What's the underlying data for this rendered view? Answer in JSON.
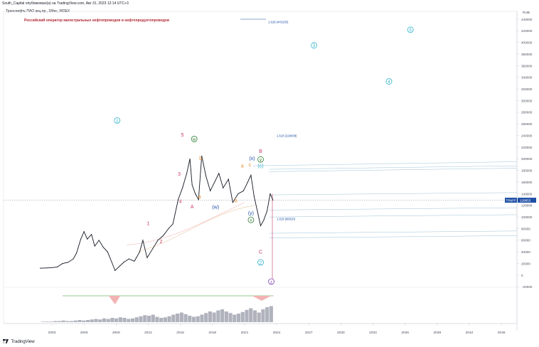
{
  "header": "South_Capital опубликовал(а) на TradingView.com, Авг 31, 2023 12:14 UTC+3",
  "symbol_line": "Транснефть ПАО акц.пр., 1Мес, MOEX",
  "description": "Российский оператор магистральных нефтепроводов и нефтепродуктопроводов",
  "footer_brand": "TradingView",
  "chart_data": {
    "type": "line",
    "currency": "RUB",
    "ticker": "TRNFP",
    "last_price_label": "128853",
    "y_ticks": [
      440000,
      420000,
      400000,
      380000,
      360000,
      340000,
      320000,
      300000,
      280000,
      260000,
      240000,
      220000,
      200000,
      180000,
      160000,
      140000,
      120000,
      100000,
      80000,
      60000,
      40000,
      20000,
      0,
      -20000
    ],
    "y_tick_labels": [
      "440000",
      "420000",
      "400000",
      "380000",
      "360000",
      "340000",
      "320000",
      "300000",
      "280000",
      "260000",
      "240000",
      "220000",
      "200000",
      "180000",
      "160000",
      "140000",
      "120000",
      "100000",
      "80000",
      "60000",
      "40000",
      "20000",
      "0",
      "−20000"
    ],
    "ylim": [
      -20000,
      440000
    ],
    "x_ticks": [
      2003,
      2006,
      2009,
      2012,
      2015,
      2018,
      2021,
      2024,
      2027,
      2030,
      2033,
      2036,
      2039,
      2042,
      2045
    ],
    "x_tick_labels": [
      "2003",
      "2006",
      "2009",
      "2012",
      "2015",
      "2018",
      "2021",
      "2024",
      "2027",
      "2030",
      "2033",
      "2036",
      "2039",
      "2042",
      "2045"
    ],
    "xlim": [
      2002.2,
      2046.5
    ],
    "price_series": [
      {
        "x": 2001.9,
        "y": 12000
      },
      {
        "x": 2002.5,
        "y": 12500
      },
      {
        "x": 2003.0,
        "y": 13000
      },
      {
        "x": 2003.5,
        "y": 14000
      },
      {
        "x": 2004.0,
        "y": 20000
      },
      {
        "x": 2004.5,
        "y": 22000
      },
      {
        "x": 2005.0,
        "y": 28000
      },
      {
        "x": 2005.3,
        "y": 38000
      },
      {
        "x": 2005.7,
        "y": 62000
      },
      {
        "x": 2006.0,
        "y": 75000
      },
      {
        "x": 2006.3,
        "y": 62000
      },
      {
        "x": 2006.7,
        "y": 70000
      },
      {
        "x": 2007.0,
        "y": 50000
      },
      {
        "x": 2007.4,
        "y": 60000
      },
      {
        "x": 2007.8,
        "y": 48000
      },
      {
        "x": 2008.2,
        "y": 40000
      },
      {
        "x": 2008.6,
        "y": 22000
      },
      {
        "x": 2008.9,
        "y": 8000
      },
      {
        "x": 2009.3,
        "y": 15000
      },
      {
        "x": 2009.7,
        "y": 22000
      },
      {
        "x": 2010.2,
        "y": 28000
      },
      {
        "x": 2010.7,
        "y": 24000
      },
      {
        "x": 2011.2,
        "y": 40000
      },
      {
        "x": 2011.5,
        "y": 60000
      },
      {
        "x": 2011.9,
        "y": 30000
      },
      {
        "x": 2012.4,
        "y": 45000
      },
      {
        "x": 2012.9,
        "y": 60000
      },
      {
        "x": 2013.4,
        "y": 68000
      },
      {
        "x": 2013.9,
        "y": 80000
      },
      {
        "x": 2014.3,
        "y": 88000
      },
      {
        "x": 2014.8,
        "y": 130000
      },
      {
        "x": 2015.2,
        "y": 150000
      },
      {
        "x": 2015.6,
        "y": 175000
      },
      {
        "x": 2015.9,
        "y": 200000
      },
      {
        "x": 2016.1,
        "y": 155000
      },
      {
        "x": 2016.4,
        "y": 140000
      },
      {
        "x": 2016.7,
        "y": 130000
      },
      {
        "x": 2017.0,
        "y": 205000
      },
      {
        "x": 2017.4,
        "y": 170000
      },
      {
        "x": 2017.8,
        "y": 145000
      },
      {
        "x": 2018.2,
        "y": 160000
      },
      {
        "x": 2018.6,
        "y": 175000
      },
      {
        "x": 2019.0,
        "y": 150000
      },
      {
        "x": 2019.5,
        "y": 165000
      },
      {
        "x": 2019.9,
        "y": 125000
      },
      {
        "x": 2020.4,
        "y": 140000
      },
      {
        "x": 2020.9,
        "y": 145000
      },
      {
        "x": 2021.3,
        "y": 160000
      },
      {
        "x": 2021.6,
        "y": 172000
      },
      {
        "x": 2021.9,
        "y": 135000
      },
      {
        "x": 2022.2,
        "y": 110000
      },
      {
        "x": 2022.5,
        "y": 85000
      },
      {
        "x": 2022.8,
        "y": 95000
      },
      {
        "x": 2023.1,
        "y": 110000
      },
      {
        "x": 2023.4,
        "y": 140000
      },
      {
        "x": 2023.66,
        "y": 128853
      }
    ],
    "wave_labels": [
      {
        "text": "1",
        "x": 2009.1,
        "y": 266000,
        "color": "#2bb0c8",
        "circled": true
      },
      {
        "text": "5",
        "x": 2015.2,
        "y": 241000,
        "color": "#c43b5f",
        "circled": false
      },
      {
        "text": "w",
        "x": 2016.3,
        "y": 234000,
        "color": "#2e7d32",
        "circled": true
      },
      {
        "text": "3",
        "x": 2014.9,
        "y": 174000,
        "color": "#c43b5f",
        "circled": false
      },
      {
        "text": "4",
        "x": 2015.0,
        "y": 127000,
        "color": "#c43b5f",
        "circled": false
      },
      {
        "text": "A",
        "x": 2016.1,
        "y": 118000,
        "color": "#c43b5f",
        "circled": false
      },
      {
        "text": "b",
        "x": 2016.9,
        "y": 201000,
        "color": "#e08a2a",
        "circled": false
      },
      {
        "text": "a",
        "x": 2016.8,
        "y": 135000,
        "color": "#e08a2a",
        "circled": false
      },
      {
        "text": "(w)",
        "x": 2018.3,
        "y": 117000,
        "color": "#1f4fa5",
        "circled": false
      },
      {
        "text": "(x)",
        "x": 2021.7,
        "y": 201000,
        "color": "#1f4fa5",
        "circled": false
      },
      {
        "text": "a",
        "x": 2020.8,
        "y": 188000,
        "color": "#e08a2a",
        "circled": false
      },
      {
        "text": "c",
        "x": 2021.5,
        "y": 190000,
        "color": "#e08a2a",
        "circled": false
      },
      {
        "text": "B",
        "x": 2022.5,
        "y": 213000,
        "color": "#c43b5f",
        "circled": false
      },
      {
        "text": "y",
        "x": 2022.5,
        "y": 199000,
        "color": "#2e7d32",
        "circled": true
      },
      {
        "text": "(c)",
        "x": 2022.5,
        "y": 188000,
        "color": "#2bb0c8",
        "circled": false
      },
      {
        "text": "b",
        "x": 2020.2,
        "y": 128000,
        "color": "#e08a2a",
        "circled": false
      },
      {
        "text": "(y)",
        "x": 2021.6,
        "y": 107000,
        "color": "#1f4fa5",
        "circled": false
      },
      {
        "text": "x",
        "x": 2021.6,
        "y": 95000,
        "color": "#2e7d32",
        "circled": true
      },
      {
        "text": "1",
        "x": 2012.0,
        "y": 89000,
        "color": "#c43b5f",
        "circled": false
      },
      {
        "text": "2",
        "x": 2013.2,
        "y": 58000,
        "color": "#c43b5f",
        "circled": false
      },
      {
        "text": "C",
        "x": 2022.5,
        "y": 40000,
        "color": "#c43b5f",
        "circled": false
      },
      {
        "text": "2",
        "x": 2022.5,
        "y": 22000,
        "color": "#2bb0c8",
        "circled": true
      },
      {
        "text": "z",
        "x": 2023.5,
        "y": -11000,
        "color": "#7b3fb3",
        "circled": true
      },
      {
        "text": "3",
        "x": 2027.5,
        "y": 395000,
        "color": "#2bb0c8",
        "circled": true
      },
      {
        "text": "4",
        "x": 2034.5,
        "y": 333000,
        "color": "#2bb0c8",
        "circled": true
      },
      {
        "text": "5",
        "x": 2036.5,
        "y": 422000,
        "color": "#2bb0c8",
        "circled": true
      }
    ],
    "fib_labels": [
      {
        "text": "1.618 (443150)",
        "x": 2023.2,
        "y": 433000
      },
      {
        "text": "1.618 (228408)",
        "x": 2024.0,
        "y": 238000
      },
      {
        "text": "1.618 (86020)",
        "x": 2024.0,
        "y": 95000
      }
    ],
    "volume_bars": [
      1,
      1,
      1,
      2,
      2,
      3,
      2,
      2,
      3,
      4,
      3,
      4,
      5,
      6,
      5,
      7,
      6,
      8,
      7,
      9,
      8,
      6,
      7,
      9,
      11,
      13,
      12,
      14,
      10,
      8,
      9,
      11,
      14,
      16,
      18,
      15,
      12,
      10,
      11,
      14,
      17,
      20,
      18,
      22,
      24,
      20,
      17,
      14,
      16,
      19,
      23,
      26,
      22,
      18,
      24,
      28,
      30
    ]
  }
}
